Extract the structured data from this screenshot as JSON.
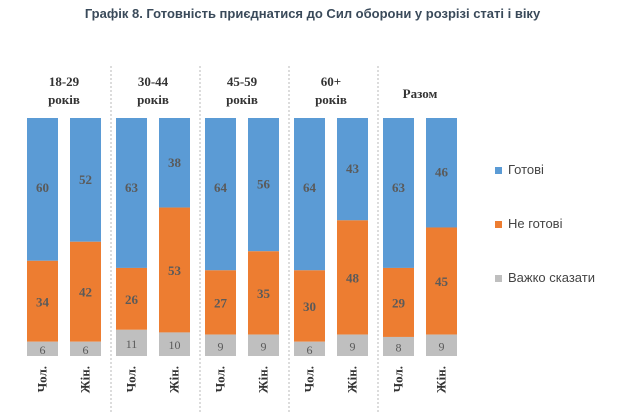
{
  "chart_data": {
    "type": "bar",
    "stacked": true,
    "normalized_percent": true,
    "title": "Графік 8. Готовність приєднатися до Сил оборони у розрізі статі і віку",
    "groups": [
      {
        "label": "18-29 років",
        "categories": [
          "Чол.",
          "Жін."
        ]
      },
      {
        "label": "30-44 років",
        "categories": [
          "Чол.",
          "Жін."
        ]
      },
      {
        "label": "45-59 років",
        "categories": [
          "Чол.",
          "Жін."
        ]
      },
      {
        "label": "60+ років",
        "categories": [
          "Чол.",
          "Жін."
        ]
      },
      {
        "label": "Разом",
        "categories": [
          "Чол.",
          "Жін."
        ]
      }
    ],
    "series": [
      {
        "name": "Готові",
        "color": "#5b9bd5",
        "values": [
          60,
          52,
          63,
          38,
          64,
          56,
          64,
          43,
          63,
          46
        ]
      },
      {
        "name": "Не готові",
        "color": "#ed7d31",
        "values": [
          34,
          42,
          26,
          53,
          27,
          35,
          30,
          48,
          29,
          45
        ]
      },
      {
        "name": "Важко сказати",
        "color": "#bfbfbf",
        "values": [
          6,
          6,
          11,
          10,
          9,
          9,
          6,
          9,
          8,
          9
        ]
      }
    ],
    "legend_position": "right",
    "grid": false
  }
}
